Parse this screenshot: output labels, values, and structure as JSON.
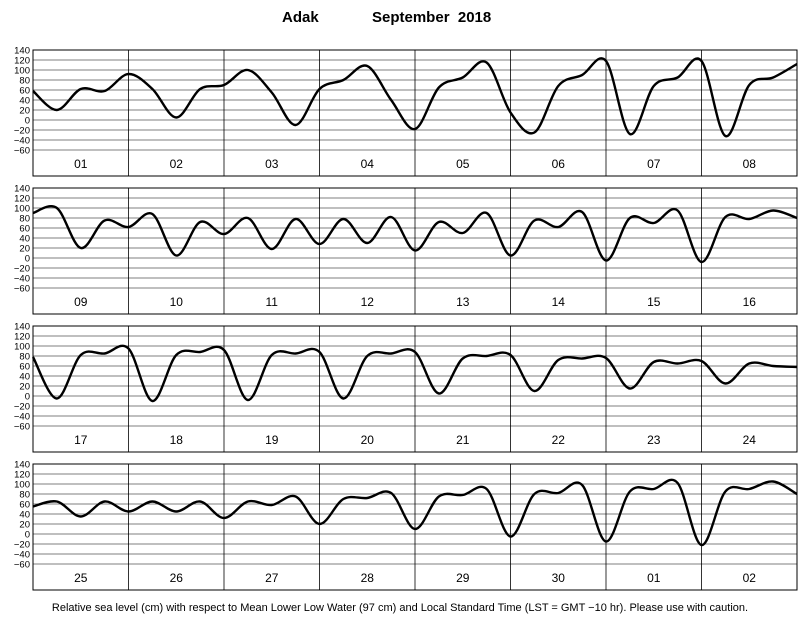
{
  "title": {
    "station": "Adak",
    "month_year": "September  2018"
  },
  "footnote": "Relative sea level (cm) with respect to Mean Lower Low Water (97 cm) and Local Standard Time (LST = GMT −10 hr). Please use with caution.",
  "chart_data": {
    "type": "line",
    "y_ticks": [
      "140",
      "120",
      "100",
      "80",
      "60",
      "40",
      "20",
      "0",
      "−20",
      "−40",
      "−60"
    ],
    "ylim": [
      -60,
      140
    ],
    "grid": true,
    "panels": [
      {
        "days": [
          "01",
          "02",
          "03",
          "04",
          "05",
          "06",
          "07",
          "08"
        ],
        "x": [
          0,
          0.25,
          0.5,
          0.75,
          1,
          1.25,
          1.5,
          1.75,
          2,
          2.25,
          2.5,
          2.75,
          3,
          3.25,
          3.5,
          3.75,
          4,
          4.25,
          4.5,
          4.75,
          5,
          5.25,
          5.5,
          5.75,
          6,
          6.25,
          6.5,
          6.75,
          7,
          7.25,
          7.5,
          7.75,
          8
        ],
        "y": [
          58,
          20,
          62,
          58,
          92,
          62,
          5,
          62,
          70,
          100,
          55,
          -10,
          62,
          80,
          108,
          40,
          -18,
          65,
          85,
          115,
          15,
          -25,
          68,
          90,
          118,
          -28,
          68,
          85,
          118,
          -32,
          70,
          85,
          112
        ]
      },
      {
        "days": [
          "09",
          "10",
          "11",
          "12",
          "13",
          "14",
          "15",
          "16"
        ],
        "x": [
          0,
          0.25,
          0.5,
          0.75,
          1,
          1.25,
          1.5,
          1.75,
          2,
          2.25,
          2.5,
          2.75,
          3,
          3.25,
          3.5,
          3.75,
          4,
          4.25,
          4.5,
          4.75,
          5,
          5.25,
          5.5,
          5.75,
          6,
          6.25,
          6.5,
          6.75,
          7,
          7.25,
          7.5,
          7.75,
          8
        ],
        "y": [
          90,
          100,
          20,
          75,
          62,
          88,
          5,
          72,
          48,
          80,
          18,
          78,
          28,
          78,
          30,
          82,
          15,
          72,
          50,
          90,
          5,
          75,
          62,
          92,
          -5,
          80,
          70,
          95,
          -8,
          82,
          78,
          95,
          80
        ]
      },
      {
        "days": [
          "17",
          "18",
          "19",
          "20",
          "21",
          "22",
          "23",
          "24"
        ],
        "x": [
          0,
          0.25,
          0.5,
          0.75,
          1,
          1.25,
          1.5,
          1.75,
          2,
          2.25,
          2.5,
          2.75,
          3,
          3.25,
          3.5,
          3.75,
          4,
          4.25,
          4.5,
          4.75,
          5,
          5.25,
          5.5,
          5.75,
          6,
          6.25,
          6.5,
          6.75,
          7,
          7.25,
          7.5,
          7.75,
          8
        ],
        "y": [
          78,
          -5,
          82,
          85,
          95,
          -10,
          82,
          88,
          92,
          -8,
          82,
          85,
          88,
          -5,
          80,
          85,
          88,
          5,
          75,
          80,
          82,
          10,
          72,
          75,
          76,
          15,
          68,
          65,
          70,
          25,
          65,
          60,
          58
        ]
      },
      {
        "days": [
          "25",
          "26",
          "27",
          "28",
          "29",
          "30",
          "01",
          "02"
        ],
        "x": [
          0,
          0.25,
          0.5,
          0.75,
          1,
          1.25,
          1.5,
          1.75,
          2,
          2.25,
          2.5,
          2.75,
          3,
          3.25,
          3.5,
          3.75,
          4,
          4.25,
          4.5,
          4.75,
          5,
          5.25,
          5.5,
          5.75,
          6,
          6.25,
          6.5,
          6.75,
          7,
          7.25,
          7.5,
          7.75,
          8
        ],
        "y": [
          55,
          65,
          35,
          65,
          45,
          65,
          45,
          65,
          32,
          65,
          58,
          75,
          20,
          70,
          72,
          82,
          10,
          75,
          78,
          90,
          -5,
          80,
          82,
          98,
          -15,
          85,
          90,
          102,
          -22,
          85,
          90,
          105,
          80
        ]
      }
    ]
  }
}
